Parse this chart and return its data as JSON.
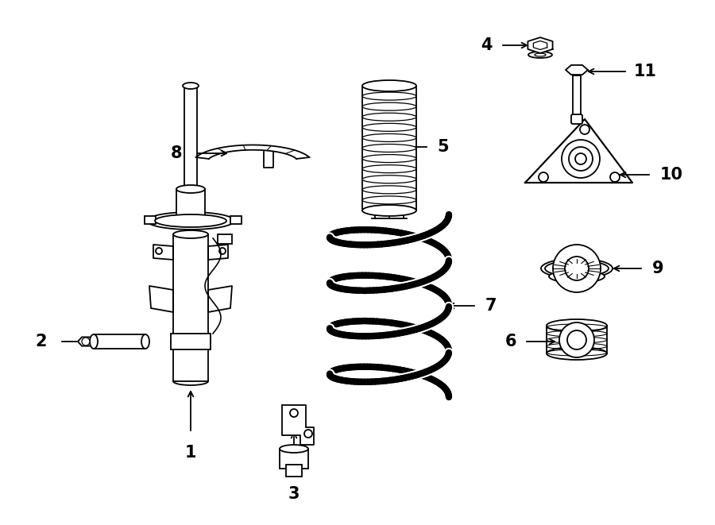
{
  "bg_color": "#ffffff",
  "line_color": "#000000",
  "figsize": [
    9.0,
    6.61
  ],
  "dpi": 100,
  "lw": 1.3
}
